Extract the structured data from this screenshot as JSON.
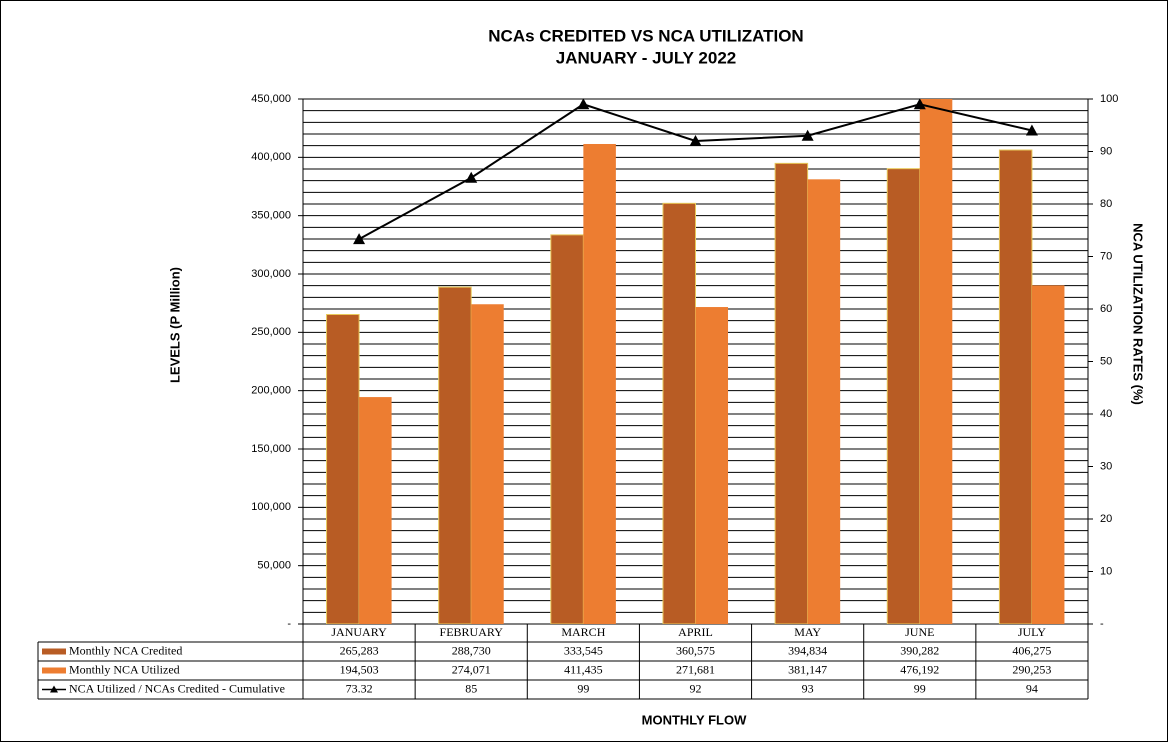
{
  "chart_data": {
    "type": "bar",
    "title": "NCAs CREDITED VS NCA UTILIZATION",
    "subtitle": "JANUARY - JULY 2022",
    "x_label": "MONTHLY FLOW",
    "y_label": "LEVELS (P Million)",
    "y2_label": "NCA UTILIZATION RATES (%)",
    "categories": [
      "JANUARY",
      "FEBRUARY",
      "MARCH",
      "APRIL",
      "MAY",
      "JUNE",
      "JULY"
    ],
    "series": [
      {
        "name": "Monthly NCA Credited",
        "type": "bar",
        "color": "#b85c24",
        "values": [
          265283,
          288730,
          333545,
          360575,
          394834,
          390282,
          406275
        ],
        "value_labels": [
          "265,283",
          "288,730",
          "333,545",
          "360,575",
          "394,834",
          "390,282",
          "406,275"
        ]
      },
      {
        "name": "Monthly NCA Utilized",
        "type": "bar",
        "color": "#ed7d31",
        "values": [
          194503,
          274071,
          411435,
          271681,
          381147,
          476192,
          290253
        ],
        "value_labels": [
          "194,503",
          "274,071",
          "411,435",
          "271,681",
          "381,147",
          "476,192",
          "290,253"
        ]
      },
      {
        "name": "NCA Utilized / NCAs Credited - Cumulative",
        "type": "line",
        "axis": "y2",
        "color": "#000000",
        "values": [
          73.32,
          85,
          99,
          92,
          93,
          99,
          94
        ]
      }
    ],
    "ylim": [
      0,
      450000
    ],
    "yticks": [
      {
        "value": 0,
        "label": "-"
      },
      {
        "value": 50000,
        "label": "50,000"
      },
      {
        "value": 100000,
        "label": "100,000"
      },
      {
        "value": 150000,
        "label": "150,000"
      },
      {
        "value": 200000,
        "label": "200,000"
      },
      {
        "value": 250000,
        "label": "250,000"
      },
      {
        "value": 300000,
        "label": "300,000"
      },
      {
        "value": 350000,
        "label": "350,000"
      },
      {
        "value": 400000,
        "label": "400,000"
      },
      {
        "value": 450000,
        "label": "450,000"
      }
    ],
    "y2lim": [
      0,
      100
    ],
    "y2ticks": [
      {
        "value": 0,
        "label": "-"
      },
      10,
      20,
      30,
      40,
      50,
      60,
      70,
      80,
      90,
      100
    ],
    "grid": true
  }
}
